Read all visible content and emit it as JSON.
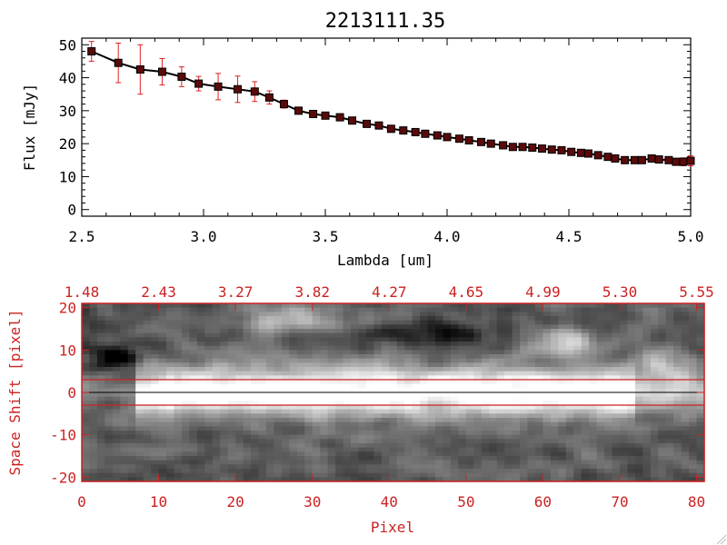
{
  "chart_data": [
    {
      "type": "line",
      "title": "2213111.35",
      "xlabel": "Lambda [um]",
      "ylabel": "Flux [mJy]",
      "xlim": [
        2.5,
        5.0
      ],
      "ylim": [
        -2,
        52
      ],
      "x_ticks": [
        "2.5",
        "3.0",
        "3.5",
        "4.0",
        "4.5",
        "5.0"
      ],
      "y_ticks": [
        "0",
        "10",
        "20",
        "30",
        "40",
        "50"
      ],
      "grid": false,
      "line_color": "#000000",
      "marker_color": "#5a0a0a",
      "error_color": "#dd2222",
      "x": [
        2.54,
        2.65,
        2.74,
        2.83,
        2.91,
        2.98,
        3.06,
        3.14,
        3.21,
        3.27,
        3.33,
        3.39,
        3.45,
        3.5,
        3.56,
        3.61,
        3.67,
        3.72,
        3.77,
        3.82,
        3.87,
        3.91,
        3.96,
        4.0,
        4.05,
        4.09,
        4.14,
        4.18,
        4.23,
        4.27,
        4.31,
        4.35,
        4.39,
        4.43,
        4.47,
        4.51,
        4.55,
        4.58,
        4.62,
        4.66,
        4.69,
        4.73,
        4.77,
        4.8,
        4.84,
        4.87,
        4.91,
        4.94,
        4.97,
        5.0
      ],
      "y": [
        48.0,
        44.5,
        42.5,
        41.8,
        40.3,
        38.2,
        37.3,
        36.5,
        35.8,
        34.0,
        32.0,
        30.0,
        29.0,
        28.5,
        28.0,
        27.0,
        26.0,
        25.5,
        24.5,
        24.0,
        23.5,
        23.0,
        22.5,
        22.0,
        21.5,
        21.0,
        20.5,
        20.0,
        19.5,
        19.0,
        19.0,
        18.8,
        18.5,
        18.2,
        18.0,
        17.5,
        17.2,
        17.0,
        16.5,
        16.0,
        15.5,
        15.0,
        15.0,
        15.0,
        15.5,
        15.2,
        15.0,
        14.5,
        14.5,
        14.8
      ],
      "yerr": [
        3.0,
        6.0,
        7.5,
        4.0,
        3.0,
        2.2,
        4.0,
        4.0,
        3.0,
        2.0,
        1.2,
        0.8,
        0.6,
        0.5,
        0.5,
        0.5,
        0.5,
        0.5,
        0.5,
        0.5,
        0.5,
        0.5,
        0.5,
        0.5,
        0.5,
        0.5,
        0.5,
        0.5,
        0.5,
        0.5,
        0.5,
        0.5,
        0.5,
        0.5,
        0.5,
        0.5,
        0.5,
        0.5,
        0.5,
        0.5,
        0.5,
        0.5,
        0.5,
        0.6,
        0.8,
        0.8,
        1.0,
        1.0,
        1.2,
        1.5
      ]
    },
    {
      "type": "heatmap",
      "xlabel": "Pixel",
      "ylabel": "Space Shift [pixel]",
      "xlim": [
        0,
        81
      ],
      "ylim": [
        -21,
        21
      ],
      "x_ticks": [
        "0",
        "10",
        "20",
        "30",
        "40",
        "50",
        "60",
        "70",
        "80"
      ],
      "y_ticks": [
        "-20",
        "-10",
        "0",
        "10",
        "20"
      ],
      "top_axis_ticks": [
        "1.48",
        "2.43",
        "3.27",
        "3.82",
        "4.27",
        "4.65",
        "4.99",
        "5.30",
        "5.55"
      ],
      "axis_color": "#cc2222",
      "colormap": "grayscale",
      "aperture_half_width": 3,
      "trace_row": 0
    }
  ]
}
